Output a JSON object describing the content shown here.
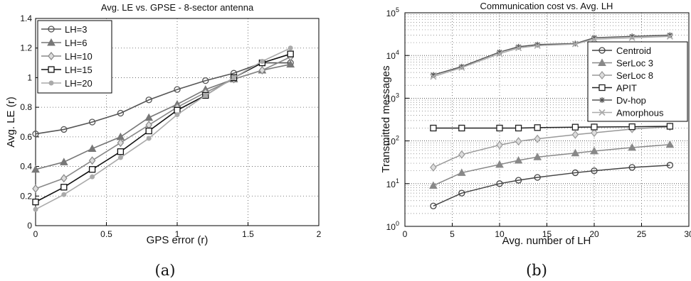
{
  "chart_data": [
    {
      "type": "line",
      "title": "Avg. LE vs. GPSE - 8-sector antenna",
      "xlabel": "GPS error (r)",
      "ylabel": "Avg. LE (r)",
      "xlim": [
        0,
        2
      ],
      "ylim": [
        0,
        1.4
      ],
      "x_ticks": [
        "0",
        "0.5",
        "1",
        "1.5",
        "2"
      ],
      "y_ticks": [
        "0",
        "0.2",
        "0.4",
        "0.6",
        "0.8",
        "1",
        "1.2",
        "1.4"
      ],
      "grid": true,
      "legend_position": "top-left",
      "caption": "(a)",
      "x": [
        0,
        0.2,
        0.4,
        0.6,
        0.8,
        1.0,
        1.2,
        1.4,
        1.6,
        1.8
      ],
      "series": [
        {
          "name": "LH=3",
          "marker": "circle",
          "color": "#555555",
          "values": [
            0.62,
            0.65,
            0.7,
            0.76,
            0.85,
            0.92,
            0.98,
            1.03,
            1.1,
            1.1
          ]
        },
        {
          "name": "LH=6",
          "marker": "triangle",
          "color": "#777777",
          "values": [
            0.38,
            0.43,
            0.52,
            0.6,
            0.73,
            0.82,
            0.92,
            0.99,
            1.05,
            1.09
          ]
        },
        {
          "name": "LH=10",
          "marker": "diamond",
          "color": "#888888",
          "values": [
            0.25,
            0.32,
            0.44,
            0.56,
            0.68,
            0.8,
            0.9,
            0.99,
            1.05,
            1.14
          ]
        },
        {
          "name": "LH=15",
          "marker": "square",
          "color": "#111111",
          "values": [
            0.16,
            0.26,
            0.38,
            0.5,
            0.64,
            0.78,
            0.88,
            1.0,
            1.1,
            1.16
          ]
        },
        {
          "name": "LH=20",
          "marker": "dot",
          "color": "#aaaaaa",
          "values": [
            0.11,
            0.21,
            0.33,
            0.46,
            0.59,
            0.75,
            0.88,
            1.0,
            1.11,
            1.2
          ]
        }
      ]
    },
    {
      "type": "line",
      "title": "Communication cost vs. Avg. LH",
      "xlabel": "Avg. number of LH",
      "ylabel": "Transmitted messages",
      "xlim": [
        0,
        30
      ],
      "ylim": [
        1,
        100000
      ],
      "y_scale": "log",
      "x_ticks": [
        "0",
        "5",
        "10",
        "15",
        "20",
        "25",
        "30"
      ],
      "y_ticks": [
        "10^0",
        "10^1",
        "10^2",
        "10^3",
        "10^4",
        "10^5"
      ],
      "grid": true,
      "legend_position": "right",
      "caption": "(b)",
      "x": [
        3,
        6,
        10,
        12,
        14,
        18,
        20,
        24,
        28
      ],
      "series": [
        {
          "name": "Centroid",
          "marker": "circle",
          "color": "#444444",
          "values": [
            3,
            6,
            10,
            12,
            14,
            18,
            20,
            24,
            27
          ]
        },
        {
          "name": "SerLoc 3",
          "marker": "triangle",
          "color": "#888888",
          "values": [
            9,
            18,
            28,
            35,
            42,
            52,
            58,
            70,
            82
          ]
        },
        {
          "name": "SerLoc 8",
          "marker": "diamond",
          "color": "#999999",
          "values": [
            24,
            48,
            80,
            98,
            112,
            140,
            155,
            190,
            215
          ]
        },
        {
          "name": "APIT",
          "marker": "square",
          "color": "#222222",
          "values": [
            200,
            200,
            200,
            200,
            205,
            210,
            212,
            215,
            220
          ]
        },
        {
          "name": "Dv-hop",
          "marker": "star",
          "color": "#555555",
          "values": [
            3500,
            5500,
            12000,
            16000,
            18000,
            19000,
            26000,
            28000,
            30000
          ]
        },
        {
          "name": "Amorphous",
          "marker": "cross",
          "color": "#aaaaaa",
          "values": [
            3200,
            5200,
            11000,
            15000,
            17000,
            18500,
            24000,
            26000,
            28000
          ]
        }
      ]
    }
  ]
}
